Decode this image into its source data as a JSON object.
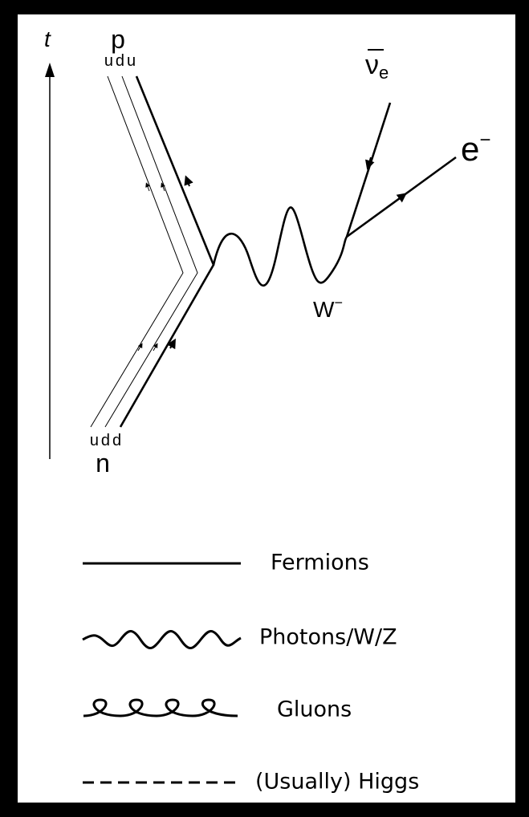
{
  "axis_label": "t",
  "proton": {
    "label": "p",
    "quarks": "udu"
  },
  "neutron": {
    "label": "n",
    "quarks": "udd"
  },
  "antineutrino": {
    "symbol": "ν",
    "subscript": "e"
  },
  "electron": {
    "symbol": "e",
    "superscript": "−"
  },
  "boson": {
    "symbol": "W",
    "superscript": "−"
  },
  "legend": [
    {
      "label": "Fermions"
    },
    {
      "label": "Photons/W/Z"
    },
    {
      "label": "Gluons"
    },
    {
      "label": "(Usually) Higgs"
    }
  ]
}
